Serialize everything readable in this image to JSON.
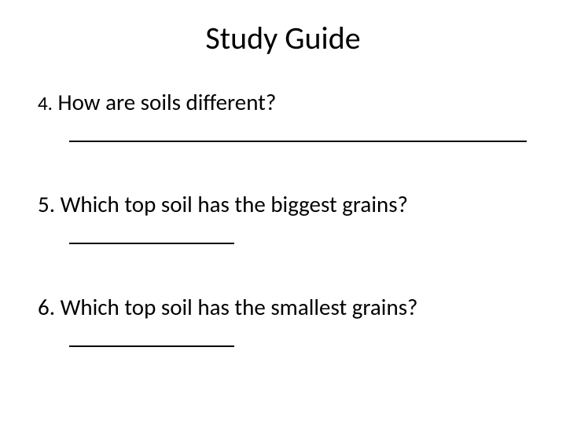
{
  "title": "Study Guide",
  "questions": [
    {
      "number": "4.",
      "text": "How are soils different?",
      "blank": "long"
    },
    {
      "number": "5.",
      "text": "Which top soil has the biggest grains?",
      "blank": "short"
    },
    {
      "number": "6.",
      "text": "Which top soil has the smallest grains?",
      "blank": "short"
    }
  ],
  "colors": {
    "background": "#ffffff",
    "text": "#000000"
  },
  "fonts": {
    "title_size": 40,
    "body_size": 29,
    "number_size": 25
  }
}
